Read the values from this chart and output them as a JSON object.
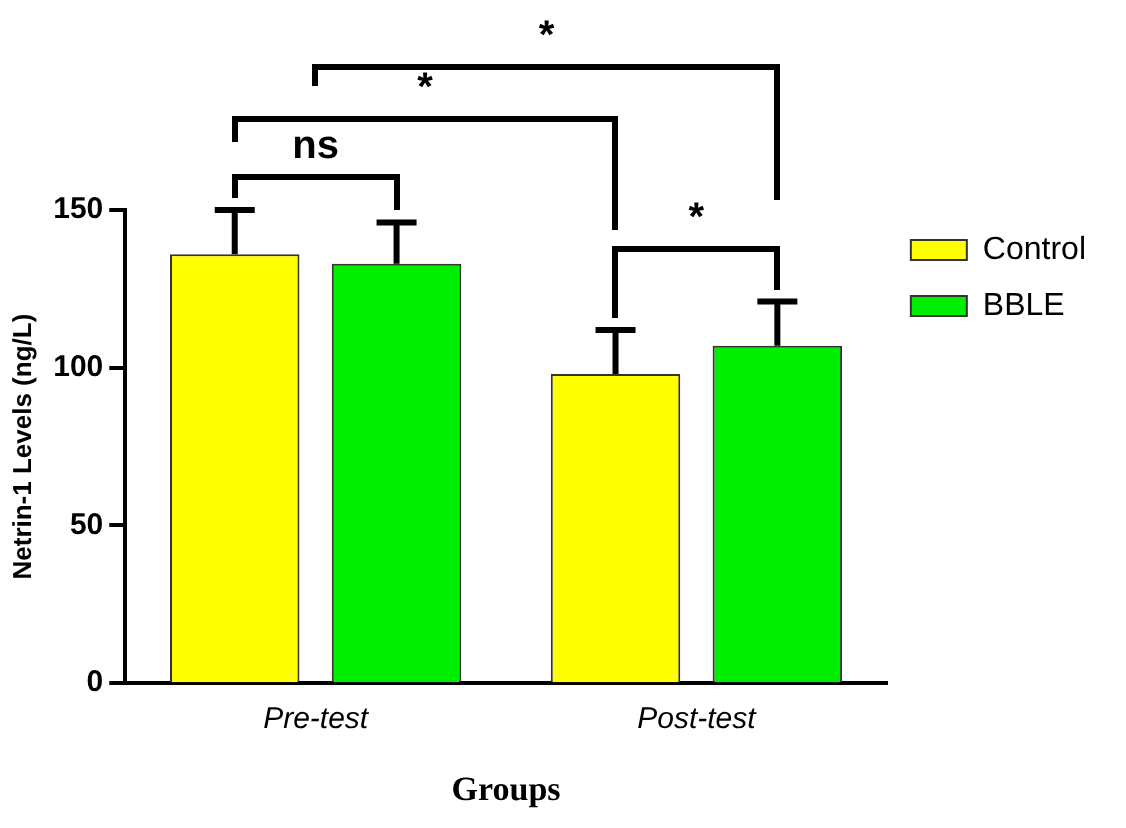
{
  "chart_data": {
    "type": "bar",
    "xlabel": "Groups",
    "ylabel": "Netrin-1 Levels (ng/L)",
    "categories": [
      "Pre-test",
      "Post-test"
    ],
    "series": [
      {
        "name": "Control",
        "color": "#ffff00",
        "values": [
          136,
          98
        ],
        "errors": [
          14,
          14
        ]
      },
      {
        "name": "BBLE",
        "color": "#00ee00",
        "values": [
          133,
          107
        ],
        "errors": [
          13,
          14
        ]
      }
    ],
    "ylim": [
      0,
      150
    ],
    "yticks": [
      0,
      50,
      100,
      150
    ],
    "grid": false,
    "legend": "right",
    "annotations": [
      "*",
      "*",
      "ns",
      "*"
    ]
  }
}
